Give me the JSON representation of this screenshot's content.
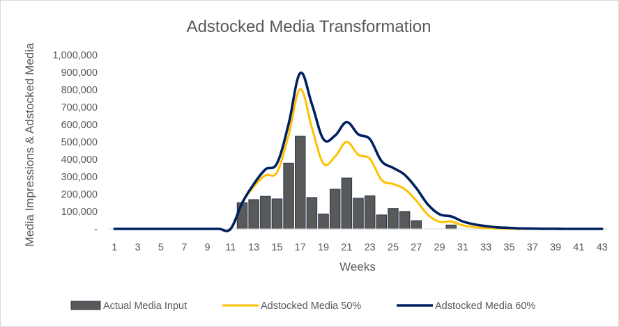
{
  "chart_data": {
    "type": "bar",
    "title": "Adstocked Media Transformation",
    "xlabel": "Weeks",
    "ylabel": "Media Impressions & Adstocked Media",
    "ylim": [
      0,
      1000000
    ],
    "y_ticks": [
      0,
      100000,
      200000,
      300000,
      400000,
      500000,
      600000,
      700000,
      800000,
      900000,
      1000000
    ],
    "y_tick_labels": [
      "-",
      "100,000",
      "200,000",
      "300,000",
      "400,000",
      "500,000",
      "600,000",
      "700,000",
      "800,000",
      "900,000",
      "1,000,000"
    ],
    "x": [
      1,
      2,
      3,
      4,
      5,
      6,
      7,
      8,
      9,
      10,
      11,
      12,
      13,
      14,
      15,
      16,
      17,
      18,
      19,
      20,
      21,
      22,
      23,
      24,
      25,
      26,
      27,
      28,
      29,
      30,
      31,
      32,
      33,
      34,
      35,
      36,
      37,
      38,
      39,
      40,
      41,
      42,
      43
    ],
    "x_tick_labels": [
      "1",
      "3",
      "5",
      "7",
      "9",
      "11",
      "13",
      "15",
      "17",
      "19",
      "21",
      "23",
      "25",
      "27",
      "29",
      "31",
      "33",
      "35",
      "37",
      "39",
      "41",
      "43"
    ],
    "grid": false,
    "legend_position": "bottom",
    "series": [
      {
        "name": "Actual Media Input",
        "type": "bar",
        "color": "#595959",
        "values": [
          0,
          0,
          0,
          0,
          0,
          0,
          0,
          0,
          0,
          0,
          0,
          150000,
          168000,
          187000,
          172000,
          378000,
          533000,
          180000,
          85000,
          228000,
          292000,
          176000,
          190000,
          80000,
          117000,
          100000,
          47000,
          0,
          0,
          22000,
          0,
          0,
          0,
          0,
          0,
          0,
          0,
          0,
          0,
          0,
          0,
          0,
          0
        ]
      },
      {
        "name": "Adstocked Media 50%",
        "type": "line",
        "color": "#FFC000",
        "values": [
          0,
          0,
          0,
          0,
          0,
          0,
          0,
          0,
          0,
          0,
          0,
          150000,
          243000,
          308000,
          326000,
          541000,
          804000,
          582000,
          376000,
          416000,
          500000,
          426000,
          403000,
          282000,
          258000,
          229000,
          162000,
          81000,
          41000,
          42000,
          21000,
          10000,
          5000,
          3000,
          1000,
          1000,
          0,
          0,
          0,
          0,
          0,
          0,
          0
        ]
      },
      {
        "name": "Adstocked Media 60%",
        "type": "line",
        "color": "#002060",
        "values": [
          0,
          0,
          0,
          0,
          0,
          0,
          0,
          0,
          0,
          0,
          0,
          150000,
          258000,
          342000,
          377000,
          604000,
          896000,
          718000,
          516000,
          537000,
          614000,
          544000,
          516000,
          390000,
          351000,
          311000,
          234000,
          140000,
          84000,
          72000,
          43000,
          26000,
          16000,
          9000,
          6000,
          3000,
          2000,
          1000,
          1000,
          0,
          0,
          0,
          0
        ]
      }
    ]
  }
}
